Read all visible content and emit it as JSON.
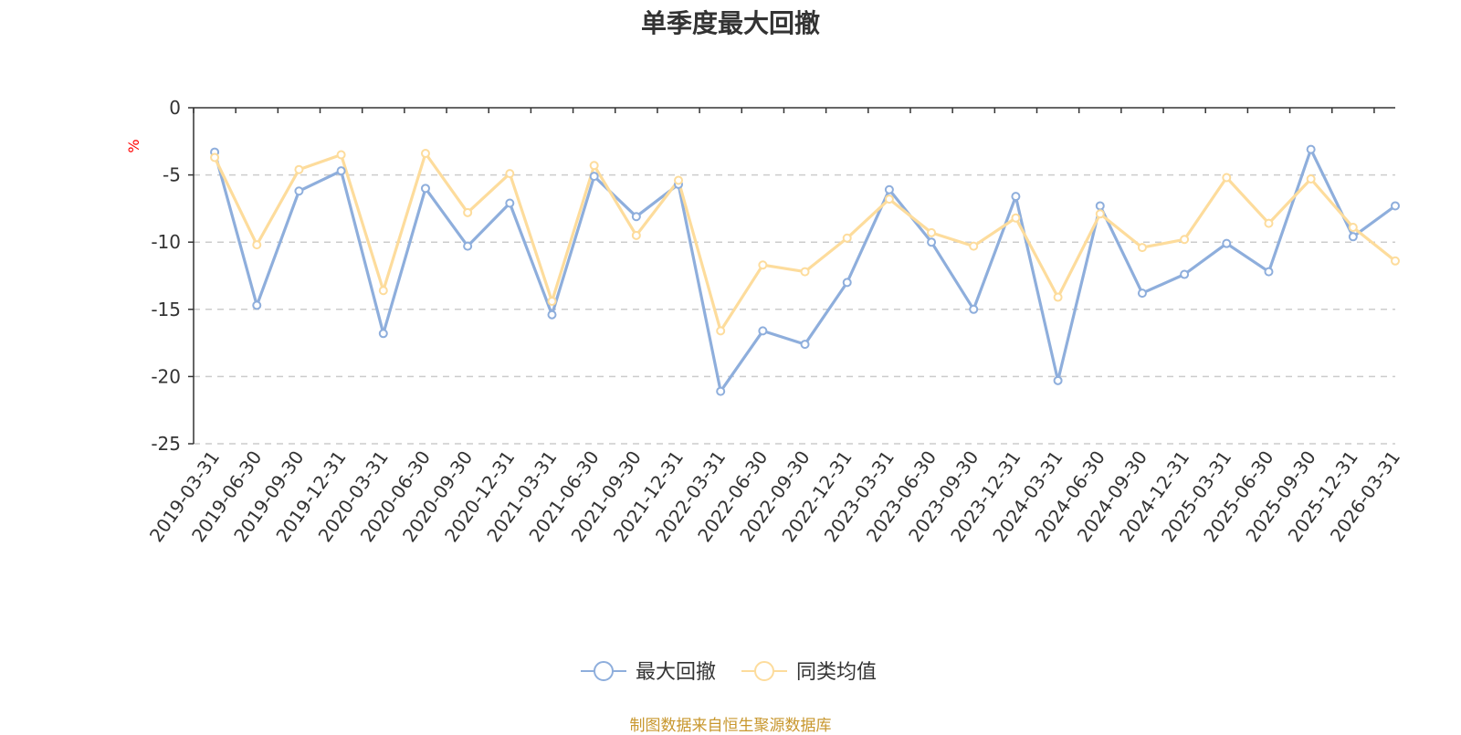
{
  "chart_data": {
    "type": "line",
    "title": "单季度最大回撤",
    "ylabel": "%",
    "xlabel": "",
    "ylim": [
      -25,
      0
    ],
    "yticks": [
      0,
      -5,
      -10,
      -15,
      -20,
      -25
    ],
    "grid": "dashed horizontal",
    "legend_position": "bottom",
    "categories": [
      "2019-03-31",
      "2019-06-30",
      "2019-09-30",
      "2019-12-31",
      "2020-03-31",
      "2020-06-30",
      "2020-09-30",
      "2020-12-31",
      "2021-03-31",
      "2021-06-30",
      "2021-09-30",
      "2021-12-31",
      "2022-03-31",
      "2022-06-30",
      "2022-09-30",
      "2022-12-31",
      "2023-03-31",
      "2023-06-30",
      "2023-09-30",
      "2023-12-31",
      "2024-03-31",
      "2024-06-30",
      "2024-09-30",
      "2024-12-31",
      "2025-03-31",
      "2025-06-30",
      "2025-09-30",
      "2025-12-31",
      "2026-03-31"
    ],
    "series": [
      {
        "name": "最大回撤",
        "color": "#8eaedc",
        "values": [
          -3.3,
          -14.7,
          -6.2,
          -4.7,
          -16.8,
          -6.0,
          -10.3,
          -7.1,
          -15.4,
          -5.1,
          -8.1,
          -5.7,
          -21.1,
          -16.6,
          -17.6,
          -13.0,
          -6.1,
          -10.0,
          -15.0,
          -6.6,
          -20.3,
          -7.3,
          -13.8,
          -12.4,
          -10.1,
          -12.2,
          -3.1,
          -9.6,
          -7.3
        ]
      },
      {
        "name": "同类均值",
        "color": "#fddc9c",
        "values": [
          -3.7,
          -10.2,
          -4.6,
          -3.5,
          -13.6,
          -3.4,
          -7.8,
          -4.9,
          -14.4,
          -4.3,
          -9.5,
          -5.4,
          -16.6,
          -11.7,
          -12.2,
          -9.7,
          -6.8,
          -9.3,
          -10.3,
          -8.2,
          -14.1,
          -7.9,
          -10.4,
          -9.8,
          -5.2,
          -8.6,
          -5.3,
          -8.9,
          -11.4
        ]
      }
    ]
  },
  "footer": {
    "source_text": "制图数据来自恒生聚源数据库"
  }
}
